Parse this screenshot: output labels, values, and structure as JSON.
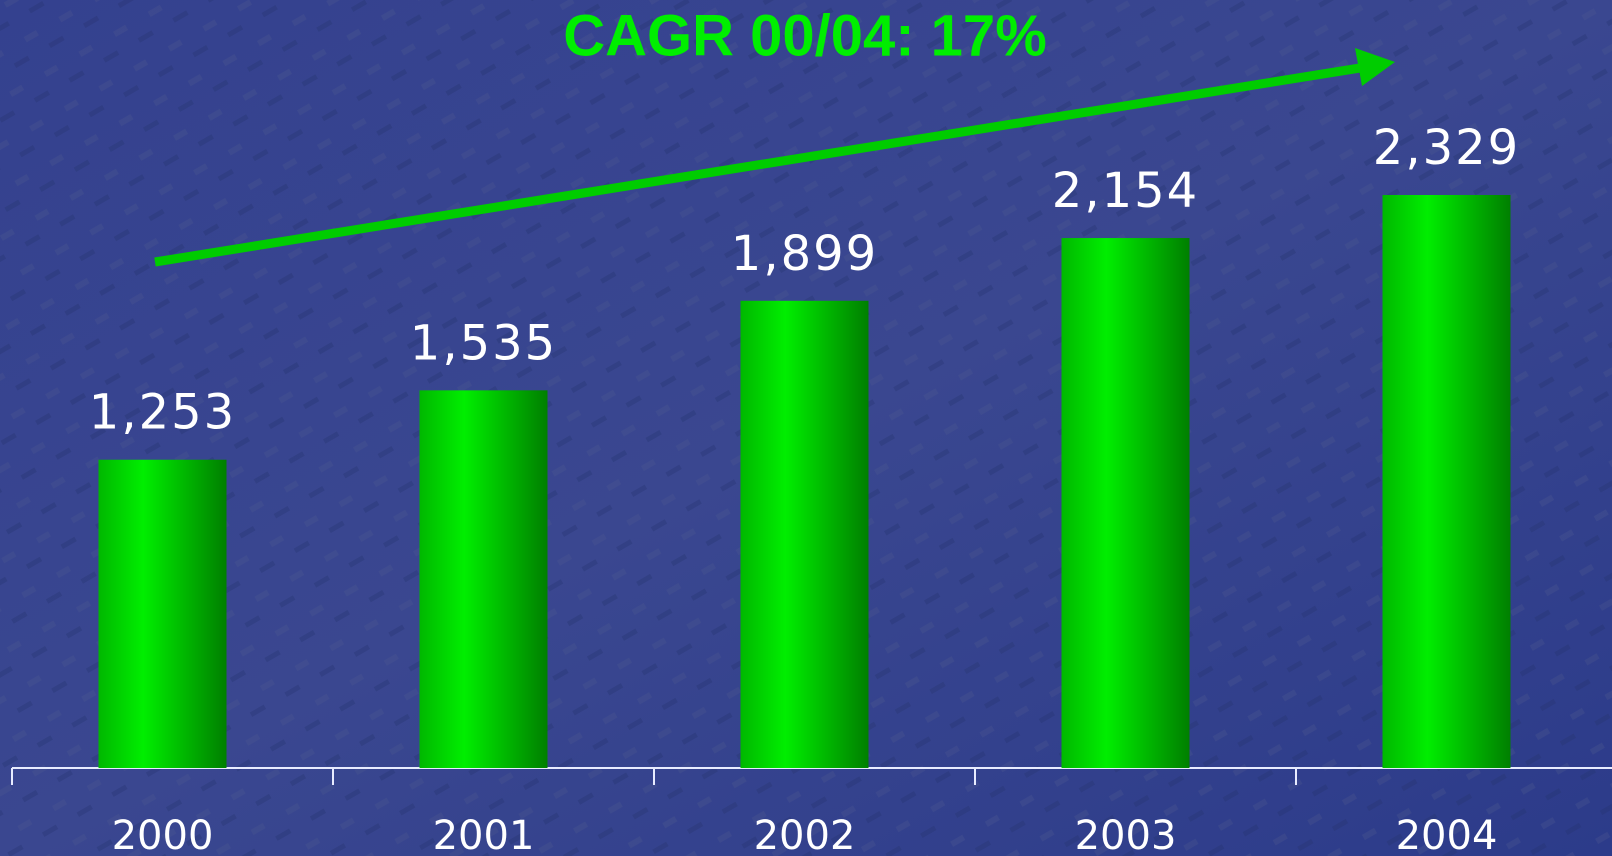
{
  "chart_data": {
    "type": "bar",
    "title": "CAGR 00/04: 17%",
    "categories": [
      "2000",
      "2001",
      "2002",
      "2003",
      "2004"
    ],
    "values": [
      1253,
      1535,
      1899,
      2154,
      2329
    ],
    "value_labels": [
      "1,253",
      "1,535",
      "1,899",
      "2,154",
      "2,329"
    ],
    "color": "#00ee00"
  }
}
